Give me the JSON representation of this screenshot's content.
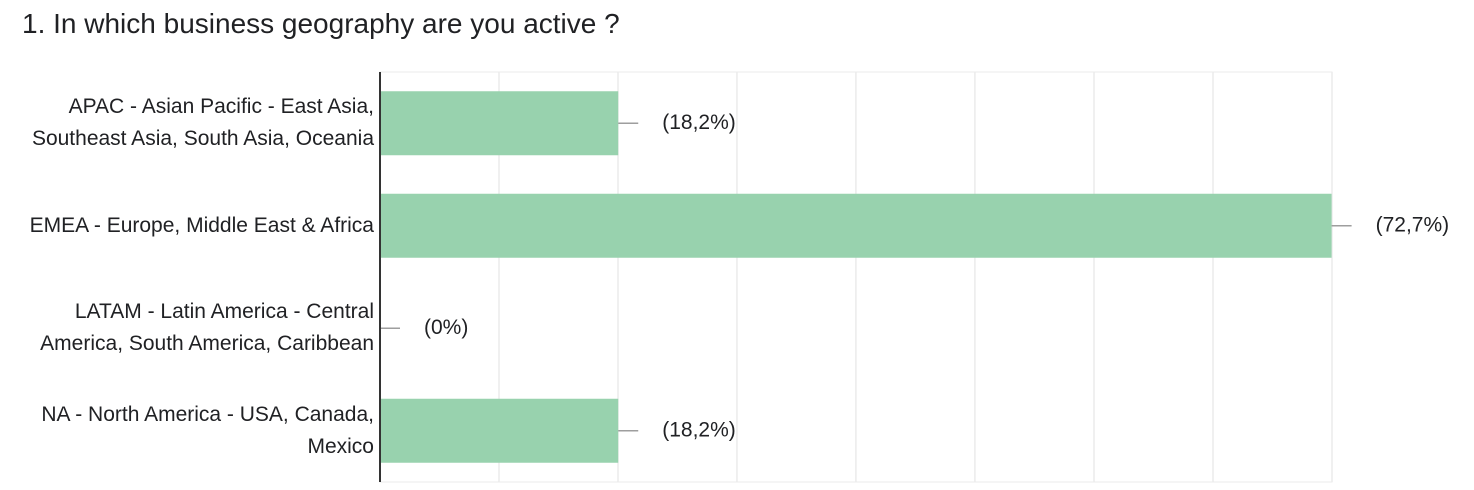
{
  "chart_data": {
    "type": "bar",
    "orientation": "horizontal",
    "title": "1. In which business geography are you active ?",
    "categories": [
      "APAC - Asian Pacific - East Asia, Southeast Asia, South Asia, Oceania",
      "EMEA - Europe, Middle East & Africa",
      "LATAM - Latin America - Central America, South America, Caribbean",
      "NA - North America - USA, Canada, Mexico"
    ],
    "values": [
      18.2,
      72.7,
      0,
      18.2
    ],
    "value_labels": [
      "(18,2%)",
      "(72,7%)",
      "(0%)",
      "(18,2%)"
    ],
    "color": "#98d2ae",
    "xlim": [
      0,
      72.73
    ],
    "xticks": [
      0,
      9.09,
      18.18,
      27.27,
      36.36,
      45.45,
      54.55,
      63.64,
      72.73
    ],
    "grid": true
  }
}
